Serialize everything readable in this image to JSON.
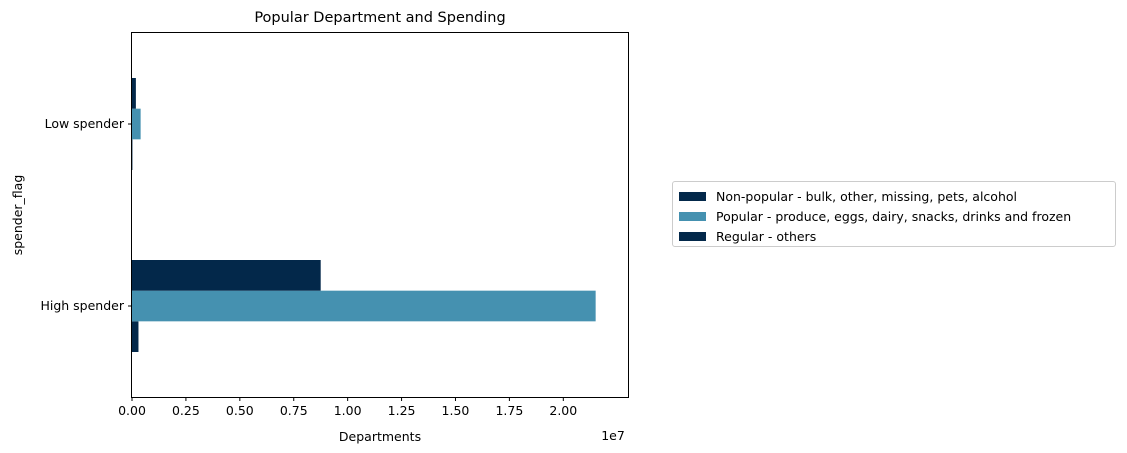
{
  "chart_data": {
    "type": "bar",
    "orientation": "horizontal",
    "title": "Popular Department and Spending",
    "xlabel": "Departments",
    "ylabel": "spender_flag",
    "x_offset_label": "1e7",
    "xlim": [
      0,
      2.3
    ],
    "x_unit_multiplier": 10000000,
    "xticks": [
      "0.00",
      "0.25",
      "0.50",
      "0.75",
      "1.00",
      "1.25",
      "1.50",
      "1.75",
      "2.00"
    ],
    "categories": [
      "High spender",
      "Low spender"
    ],
    "series": [
      {
        "name": "Non-popular - bulk, other, missing, pets, alcohol",
        "color": "#03284a",
        "values": [
          0.03,
          0.002
        ]
      },
      {
        "name": "Popular - produce, eggs, dairy, snacks, drinks and frozen",
        "color": "#4591b0",
        "values": [
          2.15,
          0.04
        ]
      },
      {
        "name": "Regular - others",
        "color": "#03284a",
        "values": [
          0.875,
          0.018
        ]
      }
    ],
    "grid": false,
    "legend_position": "right"
  }
}
